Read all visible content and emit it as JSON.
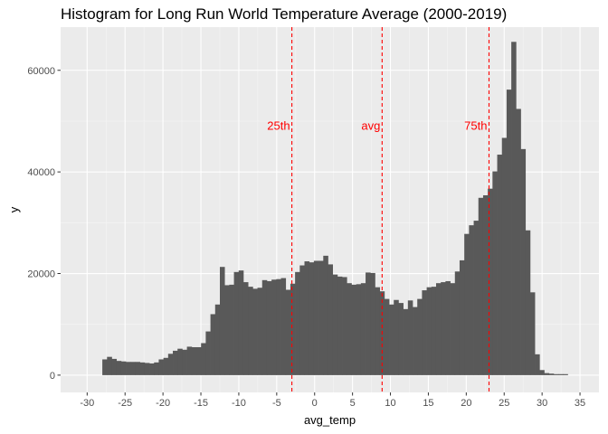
{
  "chart_data": {
    "type": "bar",
    "title": "Histogram for Long Run World Temperature Average (2000-2019)",
    "xlabel": "avg_temp",
    "ylabel": "y",
    "xlim": [
      -33.5,
      37.5
    ],
    "ylim": [
      -3400,
      68500
    ],
    "x_ticks": [
      -30,
      -25,
      -20,
      -15,
      -10,
      -5,
      0,
      5,
      10,
      15,
      20,
      25,
      30,
      35
    ],
    "x_tick_labels": [
      "-30",
      "-25",
      "-20",
      "-15",
      "-10",
      "-5",
      "0",
      "5",
      "10",
      "15",
      "20",
      "25",
      "30",
      "35"
    ],
    "y_ticks": [
      0,
      20000,
      40000,
      60000
    ],
    "y_tick_labels": [
      "0",
      "20000",
      "40000",
      "60000"
    ],
    "grid": true,
    "bin_width": 0.62,
    "bin_start": -28.0,
    "values": [
      3100,
      3600,
      3200,
      2800,
      2700,
      2600,
      2600,
      2600,
      2500,
      2400,
      2300,
      2500,
      3100,
      3400,
      4200,
      4800,
      5200,
      5000,
      5600,
      5500,
      5500,
      6300,
      8600,
      12000,
      13900,
      21300,
      17700,
      17800,
      20300,
      20600,
      18300,
      17400,
      17000,
      17200,
      18700,
      18500,
      18800,
      18900,
      19100,
      16800,
      18000,
      20300,
      21600,
      22400,
      22200,
      22500,
      22500,
      23500,
      21800,
      19800,
      19400,
      19300,
      18100,
      17800,
      17900,
      18100,
      20200,
      20100,
      17300,
      16500,
      15000,
      13900,
      14800,
      14200,
      13000,
      14700,
      13400,
      15000,
      16700,
      17300,
      17400,
      18100,
      18300,
      18500,
      18100,
      20400,
      22600,
      27800,
      29500,
      30400,
      34900,
      35400,
      36700,
      40100,
      43400,
      46700,
      56200,
      65600,
      52400,
      44500,
      28500,
      16300,
      4100,
      1000,
      400,
      300,
      200,
      200,
      200
    ],
    "reference_lines": [
      {
        "name": "25th",
        "x": -3.0,
        "color": "#ff0000"
      },
      {
        "name": "avg",
        "x": 8.9,
        "color": "#ff0000"
      },
      {
        "name": "75th",
        "x": 23.0,
        "color": "#ff0000"
      }
    ],
    "colors": {
      "bars": "#595959",
      "panel": "#ebebeb",
      "grid_major": "#ffffff",
      "grid_minor": "#f5f5f5",
      "reference": "#ff0000",
      "ticks": "#333333",
      "tick_labels": "#4d4d4d"
    }
  }
}
